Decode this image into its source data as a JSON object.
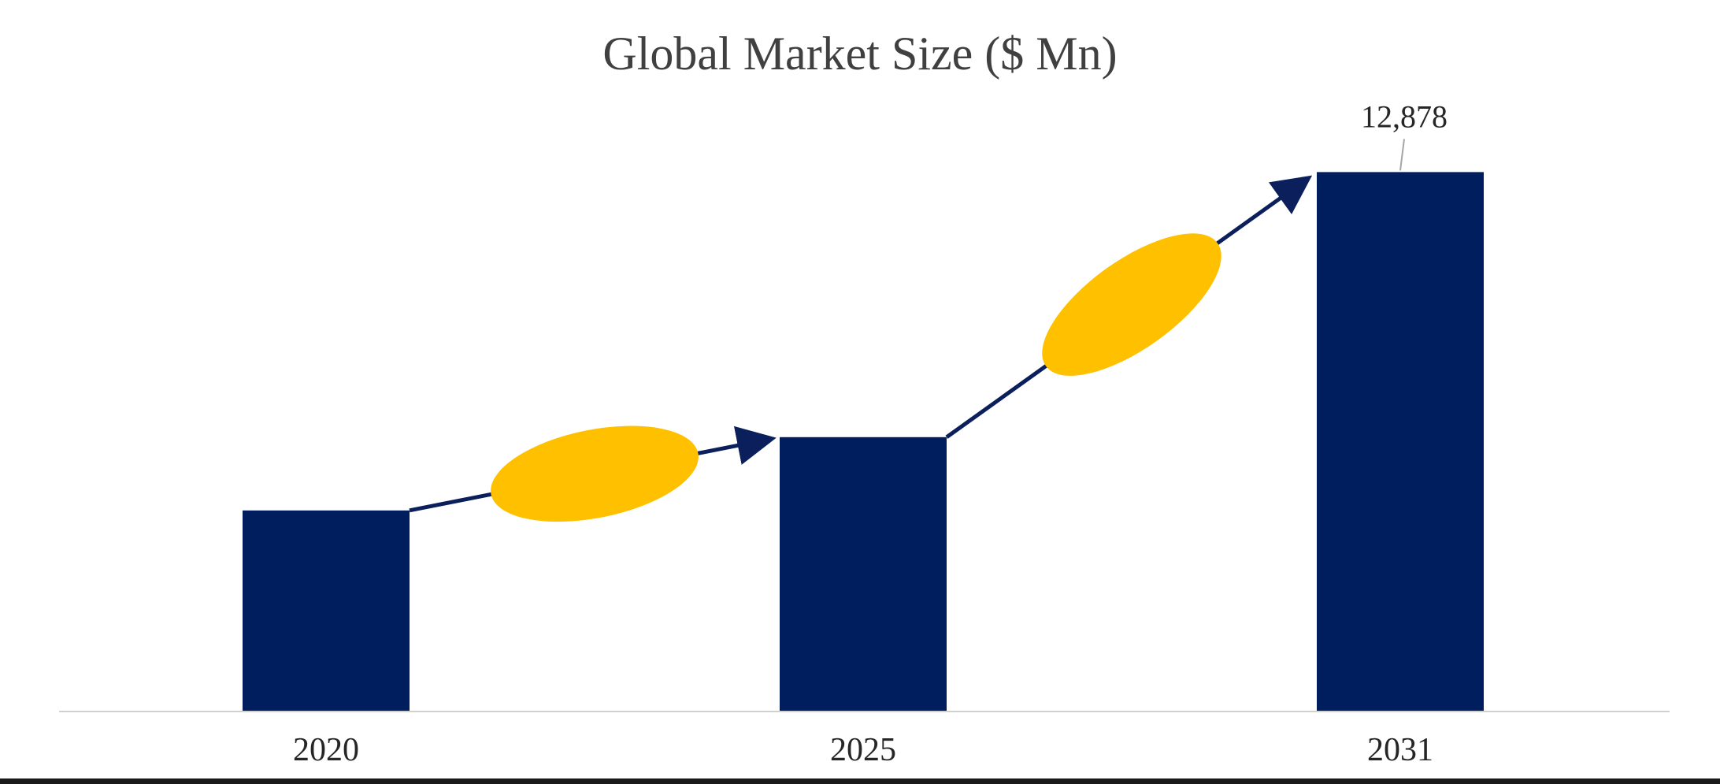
{
  "chart_data": {
    "type": "bar",
    "title": "Global Market Size ($ Mn)",
    "xlabel": "",
    "ylabel": "",
    "categories": [
      "2020",
      "2025",
      "2031"
    ],
    "values": [
      4800,
      6550,
      12878
    ],
    "data_labels": [
      "",
      "",
      "12,878"
    ],
    "ylim": [
      0,
      13600
    ],
    "grid": false,
    "legend": "none",
    "growth_arrows": [
      {
        "from": "2020",
        "to": "2025"
      },
      {
        "from": "2025",
        "to": "2031"
      }
    ]
  },
  "colors": {
    "bar": "#001e5e",
    "arrow": "#0b1f5c",
    "badge": "#ffc000",
    "axis": "#d0d0d0",
    "text": "#262626",
    "title": "#404040"
  }
}
